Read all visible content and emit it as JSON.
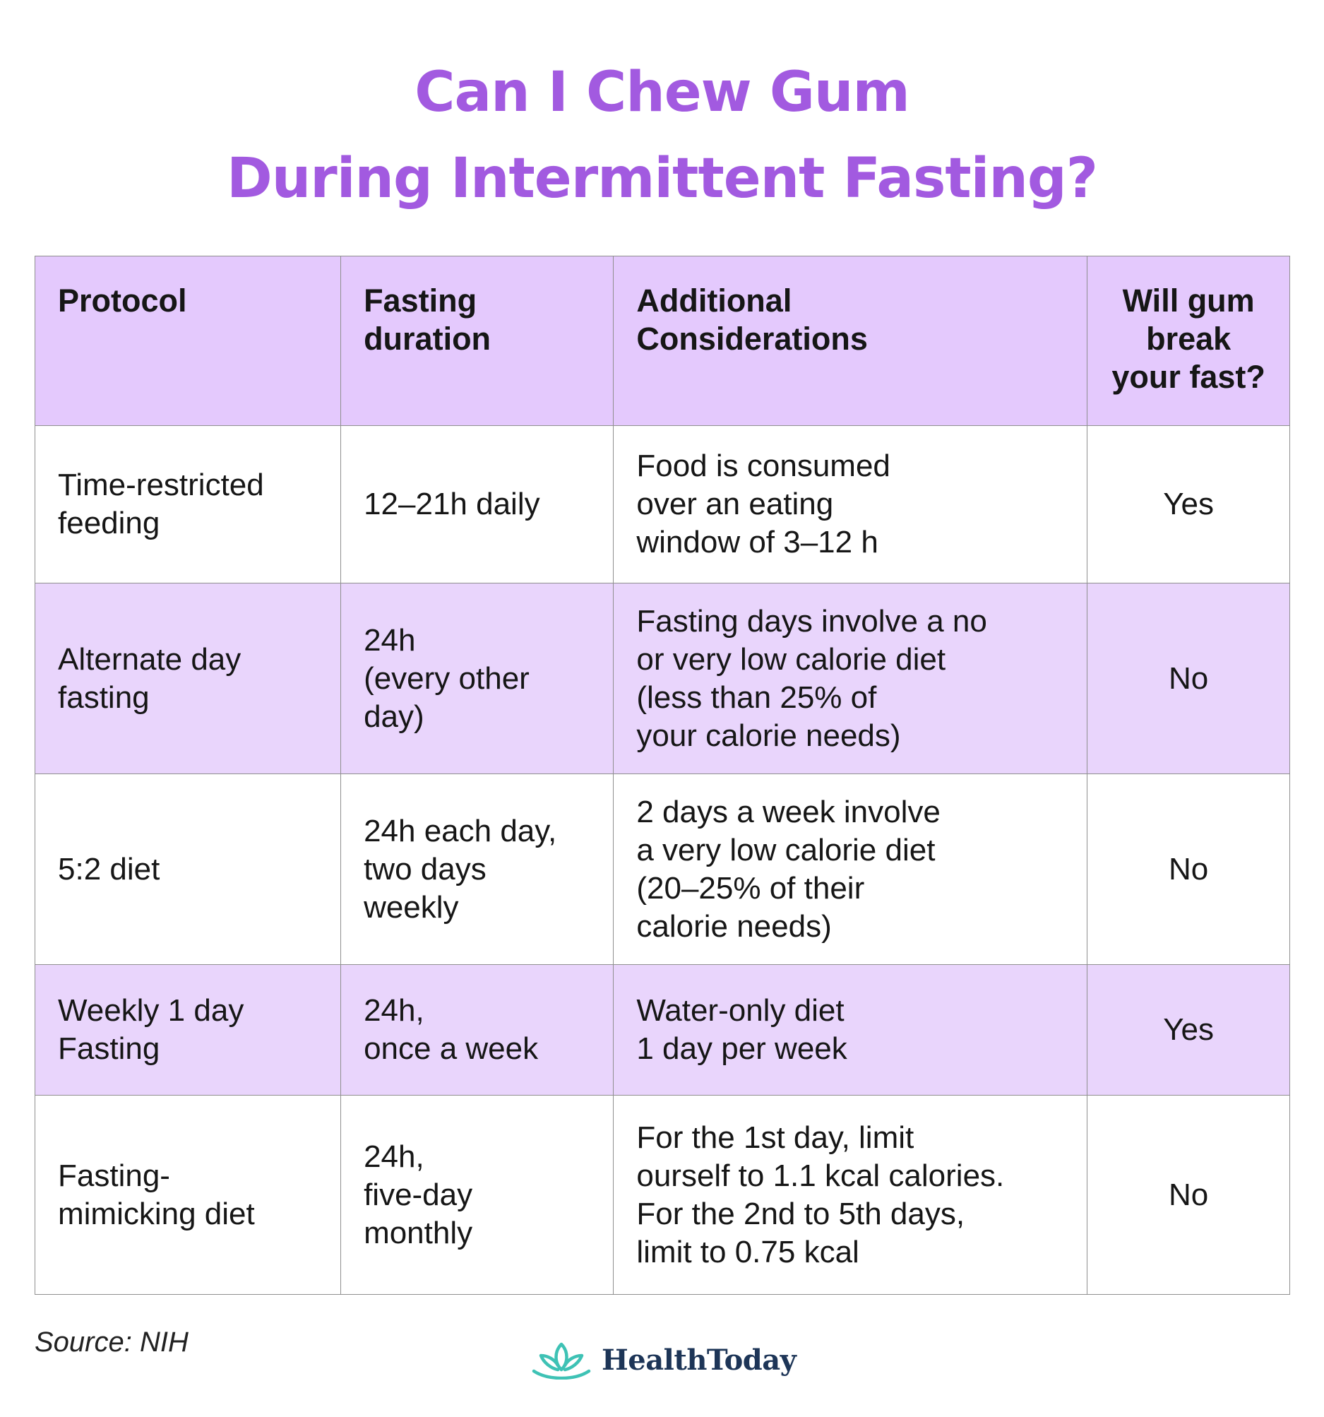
{
  "title": {
    "line1": "Can I Chew Gum",
    "line2": "During Intermittent Fasting?"
  },
  "table": {
    "headers": {
      "protocol": "Protocol",
      "duration": "Fasting\nduration",
      "considerations": "Additional\nConsiderations",
      "gum": "Will gum\nbreak\nyour fast?"
    },
    "rows": [
      {
        "protocol": "Time-restricted\nfeeding",
        "duration": "12–21h daily",
        "considerations": "Food is consumed\nover an eating\nwindow of 3–12 h",
        "gum": "Yes"
      },
      {
        "protocol": "Alternate day\nfasting",
        "duration": "24h\n(every other\nday)",
        "considerations": "Fasting days involve a no\nor very low calorie diet\n(less than 25% of\nyour calorie needs)",
        "gum": "No"
      },
      {
        "protocol": "5:2 diet",
        "duration": "24h each day,\ntwo days\nweekly",
        "considerations": "2 days a week involve\na very low calorie diet\n(20–25% of their\ncalorie needs)",
        "gum": "No"
      },
      {
        "protocol": "Weekly 1 day\nFasting",
        "duration": "24h,\nonce a week",
        "considerations": "Water-only diet\n1 day per week",
        "gum": "Yes"
      },
      {
        "protocol": "Fasting-\nmimicking diet",
        "duration": "24h,\nfive-day\nmonthly",
        "considerations": "For the 1st day, limit\nourself to 1.1 kcal calories.\nFor the 2nd to 5th days,\nlimit to 0.75 kcal",
        "gum": "No"
      }
    ]
  },
  "footer": {
    "source": "Source: NIH",
    "brand": "HealthToday",
    "logo_icon": "lotus-icon"
  },
  "colors": {
    "title": "#a25ae0",
    "header_bg": "#e4c9fd",
    "shaded_row_bg": "#e9d5fc",
    "logo_teal": "#3ec2b5",
    "brand_text": "#1d3557"
  }
}
